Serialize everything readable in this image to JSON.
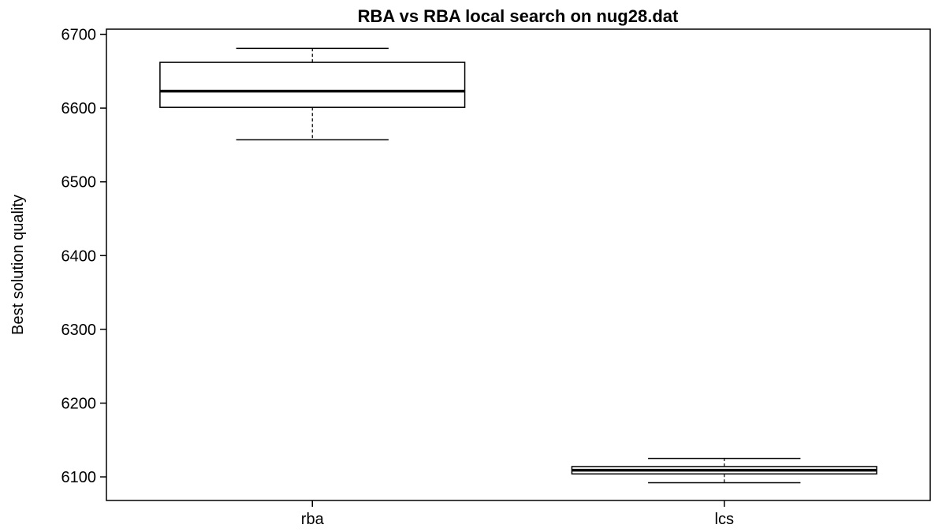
{
  "chart_data": {
    "type": "boxplot",
    "title": "RBA vs RBA local search on nug28.dat",
    "xlabel": "",
    "ylabel": "Best solution quality",
    "ylim": [
      6068,
      6707
    ],
    "yticks": [
      "6100",
      "6200",
      "6300",
      "6400",
      "6500",
      "6600",
      "6700"
    ],
    "categories": [
      "rba",
      "lcs"
    ],
    "boxes": [
      {
        "name": "rba",
        "whisker_low": 6557,
        "q1": 6601,
        "median": 6623,
        "q3": 6662,
        "whisker_high": 6681
      },
      {
        "name": "lcs",
        "whisker_low": 6092,
        "q1": 6104,
        "median": 6109,
        "q3": 6114,
        "whisker_high": 6125
      }
    ],
    "grid": false,
    "colors": {
      "line": "#000000",
      "background": "#ffffff",
      "box_fill": "#ffffff"
    }
  }
}
